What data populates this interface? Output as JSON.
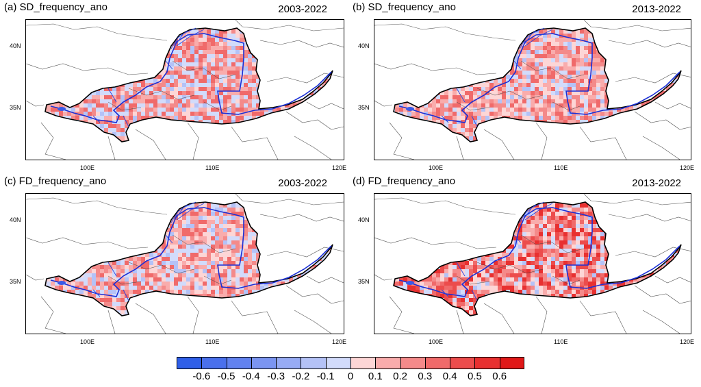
{
  "panels": [
    {
      "title": "(a) SD_frequency_ano",
      "period": "2003-2022"
    },
    {
      "title": "(b) SD_frequency_ano",
      "period": "2013-2022"
    },
    {
      "title": "(c) FD_frequency_ano",
      "period": "2003-2022"
    },
    {
      "title": "(d) FD_frequency_ano",
      "period": "2013-2022"
    }
  ],
  "axes": {
    "lat_ticks": [
      "40N",
      "35N"
    ],
    "lon_ticks": [
      "100E",
      "110E",
      "120E"
    ]
  },
  "colorbar": {
    "labels": [
      "-0.6",
      "-0.5",
      "-0.4",
      "-0.3",
      "-0.2",
      "-0.1",
      "0",
      "0.1",
      "0.2",
      "0.3",
      "0.4",
      "0.5",
      "0.6"
    ],
    "colors": [
      "#2f5fe8",
      "#4a70ec",
      "#6282ef",
      "#7b95f1",
      "#97abf4",
      "#b4c2f7",
      "#d2dbfb",
      "#fdd6d6",
      "#f9acac",
      "#f48a8a",
      "#f06a6a",
      "#ec4c4c",
      "#e83030",
      "#e01818"
    ]
  }
}
